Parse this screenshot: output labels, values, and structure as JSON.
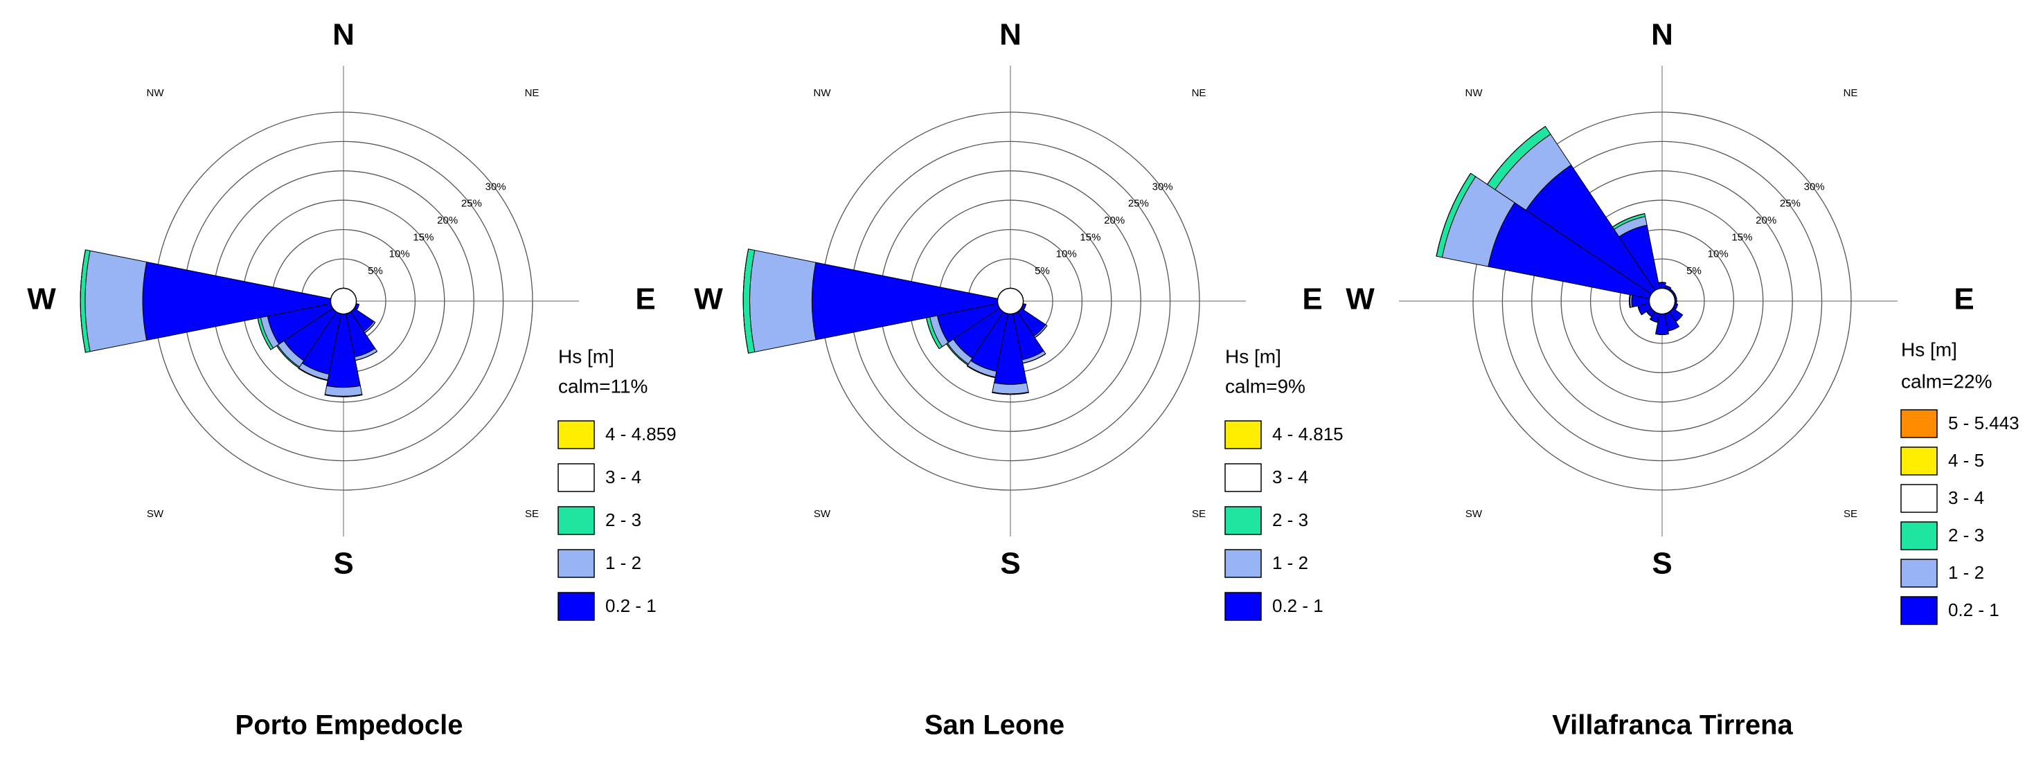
{
  "chart_data": [
    {
      "type": "windrose",
      "title": "Porto Empedocle",
      "legend_title": "Hs [m]",
      "subtitle": "calm=11%",
      "categories": [
        "N",
        null,
        "NE",
        null,
        "E",
        null,
        "SE",
        null,
        "S",
        null,
        "SW",
        null,
        "W",
        null,
        "NW",
        null
      ],
      "rlim": [
        0,
        30
      ],
      "rticks": [
        {
          "value": 5,
          "label": "5%"
        },
        {
          "value": 10,
          "label": "10%"
        },
        {
          "value": 15,
          "label": "15%"
        },
        {
          "value": 20,
          "label": "20%"
        },
        {
          "value": 25,
          "label": "25%"
        },
        {
          "value": 30,
          "label": "30%"
        }
      ],
      "series": [
        {
          "name": "0.2 - 1",
          "color": "#0000ff",
          "values": [
            0,
            0,
            0,
            0,
            0,
            0.5,
            4,
            7.5,
            12.5,
            10.5,
            10,
            11,
            32,
            0,
            0,
            0
          ]
        },
        {
          "name": "1 - 2",
          "color": "#99b4f5",
          "values": [
            0,
            0,
            0,
            0,
            0,
            0,
            0.3,
            0.6,
            1.5,
            1,
            1.3,
            1.2,
            9.8,
            0,
            0,
            0
          ]
        },
        {
          "name": "2 - 3",
          "color": "#1ee6a0",
          "values": [
            0,
            0,
            0,
            0,
            0,
            0,
            0,
            0,
            0.1,
            0.1,
            0.2,
            0.5,
            0.8,
            0,
            0,
            0
          ]
        },
        {
          "name": "3 - 4",
          "color": "#ffffff",
          "values": [
            0,
            0,
            0,
            0,
            0,
            0,
            0,
            0,
            0,
            0,
            0,
            0,
            0,
            0,
            0,
            0
          ]
        },
        {
          "name": "4 - 4.859",
          "color": "#ffee00",
          "values": [
            0,
            0,
            0,
            0,
            0,
            0,
            0,
            0,
            0,
            0,
            0,
            0,
            0,
            0,
            0,
            0
          ]
        }
      ]
    },
    {
      "type": "windrose",
      "title": "San Leone",
      "legend_title": "Hs [m]",
      "subtitle": "calm=9%",
      "categories": [
        "N",
        null,
        "NE",
        null,
        "E",
        null,
        "SE",
        null,
        "S",
        null,
        "SW",
        null,
        "W",
        null,
        "NW",
        null
      ],
      "rlim": [
        0,
        30
      ],
      "rticks": [
        {
          "value": 5,
          "label": "5%"
        },
        {
          "value": 10,
          "label": "10%"
        },
        {
          "value": 15,
          "label": "15%"
        },
        {
          "value": 20,
          "label": "20%"
        },
        {
          "value": 25,
          "label": "25%"
        },
        {
          "value": 30,
          "label": "30%"
        }
      ],
      "series": [
        {
          "name": "0.2 - 1",
          "color": "#0000ff",
          "values": [
            0,
            0,
            0,
            0,
            0,
            0.5,
            5,
            8,
            12,
            10,
            9.5,
            10.5,
            31.6,
            0,
            0,
            0
          ]
        },
        {
          "name": "1 - 2",
          "color": "#99b4f5",
          "values": [
            0,
            0,
            0,
            0,
            0,
            0,
            0.3,
            0.6,
            1.6,
            1,
            1.2,
            1.3,
            10.6,
            0,
            0,
            0
          ]
        },
        {
          "name": "2 - 3",
          "color": "#1ee6a0",
          "values": [
            0,
            0,
            0,
            0,
            0,
            0,
            0,
            0,
            0.1,
            0.1,
            0.2,
            0.6,
            1.1,
            0,
            0,
            0
          ]
        },
        {
          "name": "3 - 4",
          "color": "#ffffff",
          "values": [
            0,
            0,
            0,
            0,
            0,
            0,
            0,
            0,
            0,
            0,
            0,
            0,
            0,
            0,
            0,
            0
          ]
        },
        {
          "name": "4 - 4.815",
          "color": "#ffee00",
          "values": [
            0,
            0,
            0,
            0,
            0,
            0,
            0,
            0,
            0,
            0,
            0,
            0,
            0,
            0,
            0,
            0
          ]
        }
      ]
    },
    {
      "type": "windrose",
      "title": "Villafranca Tirrena",
      "legend_title": "Hs [m]",
      "subtitle": "calm=22%",
      "categories": [
        "N",
        null,
        "NE",
        null,
        "E",
        null,
        "SE",
        null,
        "S",
        null,
        "SW",
        null,
        "W",
        null,
        "NW",
        null
      ],
      "rlim": [
        0,
        30
      ],
      "rticks": [
        {
          "value": 5,
          "label": "5%"
        },
        {
          "value": 10,
          "label": "10%"
        },
        {
          "value": 15,
          "label": "15%"
        },
        {
          "value": 20,
          "label": "20%"
        },
        {
          "value": 25,
          "label": "25%"
        },
        {
          "value": 30,
          "label": "30%"
        }
      ],
      "series": [
        {
          "name": "0.2 - 1",
          "color": "#0000ff",
          "values": [
            1,
            0.5,
            0.3,
            0.3,
            0.3,
            0.5,
            2,
            3,
            3.5,
            1.5,
            1,
            2,
            3,
            28,
            25.7,
            11
          ]
        },
        {
          "name": "1 - 2",
          "color": "#99b4f5",
          "values": [
            0,
            0,
            0,
            0,
            0,
            0,
            0,
            0,
            0,
            0,
            0,
            0,
            0.3,
            8,
            6.3,
            1.5
          ]
        },
        {
          "name": "2 - 3",
          "color": "#1ee6a0",
          "values": [
            0,
            0,
            0,
            0,
            0,
            0,
            0,
            0,
            0,
            0,
            0,
            0,
            0.1,
            1,
            1.6,
            0.5
          ]
        },
        {
          "name": "3 - 4",
          "color": "#ffffff",
          "values": [
            0,
            0,
            0,
            0,
            0,
            0,
            0,
            0,
            0,
            0,
            0,
            0,
            0,
            0,
            0,
            0
          ]
        },
        {
          "name": "4 - 5",
          "color": "#ffee00",
          "values": [
            0,
            0,
            0,
            0,
            0,
            0,
            0,
            0,
            0,
            0,
            0,
            0,
            0,
            0,
            0,
            0
          ]
        },
        {
          "name": "5 - 5.443",
          "color": "#ff8c00",
          "values": [
            0,
            0,
            0,
            0,
            0,
            0,
            0,
            0,
            0,
            0,
            0,
            0,
            0,
            0,
            0,
            0
          ]
        }
      ]
    }
  ]
}
